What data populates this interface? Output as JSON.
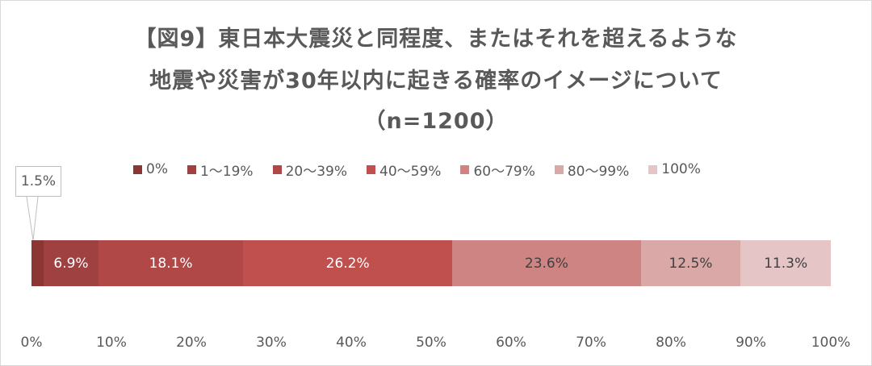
{
  "title": {
    "line1": "【図9】東日本大震災と同程度、またはそれを超えるような",
    "line2": "地震や災害が30年以内に起きる確率のイメージについて",
    "line3": "（n=1200）"
  },
  "legend": [
    {
      "label": "0%",
      "color": "#8B3535"
    },
    {
      "label": "1～19%",
      "color": "#A04141"
    },
    {
      "label": "20～39%",
      "color": "#B04848"
    },
    {
      "label": "40～59%",
      "color": "#C0504D"
    },
    {
      "label": "60～79%",
      "color": "#CD8482"
    },
    {
      "label": "80～99%",
      "color": "#DAA8A7"
    },
    {
      "label": "100%",
      "color": "#E6C5C6"
    }
  ],
  "bar_segments": [
    {
      "category": "0%",
      "value": 1.5,
      "label": "1.5%",
      "color": "#8B3535",
      "text": "light",
      "show_inside": false
    },
    {
      "category": "1～19%",
      "value": 6.9,
      "label": "6.9%",
      "color": "#A04141",
      "text": "light",
      "show_inside": true
    },
    {
      "category": "20～39%",
      "value": 18.1,
      "label": "18.1%",
      "color": "#B04848",
      "text": "light",
      "show_inside": true
    },
    {
      "category": "40～59%",
      "value": 26.2,
      "label": "26.2%",
      "color": "#C0504D",
      "text": "light",
      "show_inside": true
    },
    {
      "category": "60～79%",
      "value": 23.6,
      "label": "23.6%",
      "color": "#CD8482",
      "text": "dark",
      "show_inside": true
    },
    {
      "category": "80～99%",
      "value": 12.5,
      "label": "12.5%",
      "color": "#DAA8A7",
      "text": "dark",
      "show_inside": true
    },
    {
      "category": "100%",
      "value": 11.3,
      "label": "11.3%",
      "color": "#E6C5C6",
      "text": "dark",
      "show_inside": true
    }
  ],
  "callout": {
    "label": "1.5%"
  },
  "x_axis": {
    "ticks": [
      "0%",
      "10%",
      "20%",
      "30%",
      "40%",
      "50%",
      "60%",
      "70%",
      "80%",
      "90%",
      "100%"
    ]
  },
  "chart_data": {
    "type": "bar",
    "orientation": "horizontal",
    "stacked": true,
    "title": "【図9】東日本大震災と同程度、またはそれを超えるような地震や災害が30年以内に起きる確率のイメージについて（n=1200）",
    "categories": [
      ""
    ],
    "series": [
      {
        "name": "0%",
        "values": [
          1.5
        ],
        "color": "#8B3535"
      },
      {
        "name": "1～19%",
        "values": [
          6.9
        ],
        "color": "#A04141"
      },
      {
        "name": "20～39%",
        "values": [
          18.1
        ],
        "color": "#B04848"
      },
      {
        "name": "40～59%",
        "values": [
          26.2
        ],
        "color": "#C0504D"
      },
      {
        "name": "60～79%",
        "values": [
          23.6
        ],
        "color": "#CD8482"
      },
      {
        "name": "80～99%",
        "values": [
          12.5
        ],
        "color": "#DAA8A7"
      },
      {
        "name": "100%",
        "values": [
          11.3
        ],
        "color": "#E6C5C6"
      }
    ],
    "xlabel": "",
    "ylabel": "",
    "xlim": [
      0,
      100
    ],
    "x_ticks": [
      "0%",
      "10%",
      "20%",
      "30%",
      "40%",
      "50%",
      "60%",
      "70%",
      "80%",
      "90%",
      "100%"
    ],
    "grid": false,
    "legend_position": "top",
    "annotations": [
      {
        "text": "1.5%",
        "type": "callout",
        "target": "0%"
      }
    ]
  }
}
